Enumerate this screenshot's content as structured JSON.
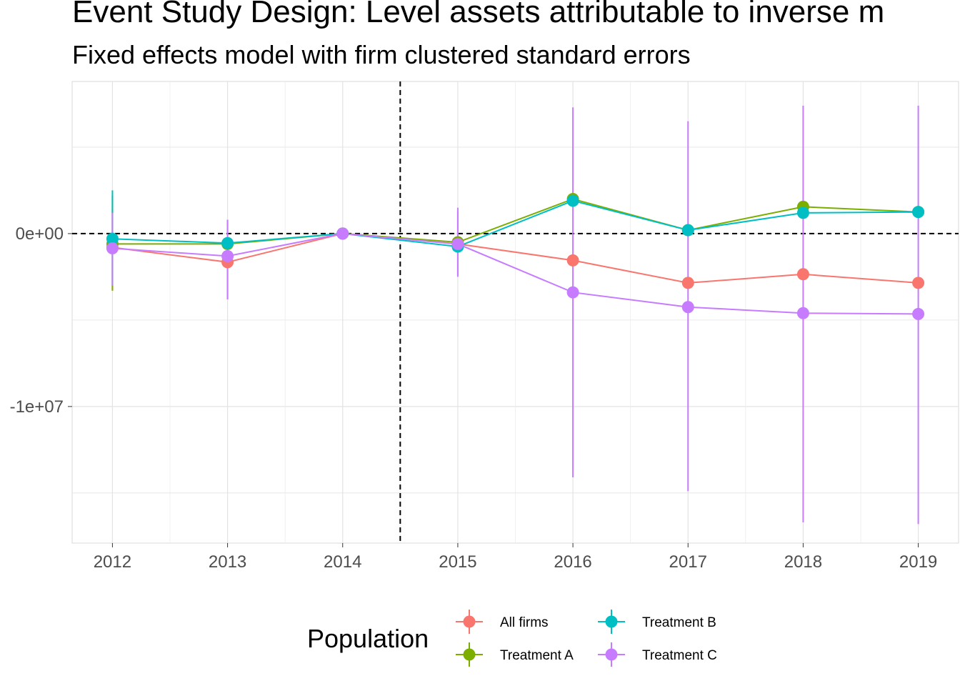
{
  "chart_data": {
    "type": "line",
    "title": "Event Study Design: Level assets attributable to inverse m",
    "subtitle": "Fixed effects model with firm clustered standard errors",
    "xlabel": "",
    "ylabel": "",
    "x": [
      2012,
      2013,
      2014,
      2015,
      2016,
      2017,
      2018,
      2019
    ],
    "x_tick_labels": [
      "2012",
      "2013",
      "2014",
      "2015",
      "2016",
      "2017",
      "2018",
      "2019"
    ],
    "y_tick_labels": [
      "0e+00",
      "-1e+07"
    ],
    "y_ticks": [
      0,
      -10000000
    ],
    "xlim": [
      2011.65,
      2019.35
    ],
    "ylim": [
      -17900000,
      8800000
    ],
    "grid": true,
    "vlines": [
      2014.5
    ],
    "hlines": [
      0
    ],
    "legend": {
      "title": "Population",
      "position": "bottom",
      "ncol": 2
    },
    "series": [
      {
        "name": "All firms",
        "color": "#F8766D",
        "values": [
          -800000,
          -1650000,
          0,
          -600000,
          -1550000,
          -2850000,
          -2350000,
          -2850000
        ],
        "lower": [
          -3300000,
          -3800000,
          0,
          -2400000,
          -1550000,
          -2850000,
          -2350000,
          -2850000
        ],
        "upper": [
          1500000,
          800000,
          0,
          1300000,
          -1550000,
          -2850000,
          -2350000,
          -2850000
        ]
      },
      {
        "name": "Treatment A",
        "color": "#7CAE00",
        "values": [
          -600000,
          -600000,
          0,
          -500000,
          2000000,
          200000,
          1550000,
          1250000
        ],
        "lower": [
          -3300000,
          -600000,
          0,
          -500000,
          2000000,
          200000,
          1550000,
          1250000
        ],
        "upper": [
          2200000,
          -600000,
          0,
          -500000,
          2000000,
          200000,
          1550000,
          1250000
        ]
      },
      {
        "name": "Treatment B",
        "color": "#00BFC4",
        "values": [
          -300000,
          -550000,
          0,
          -750000,
          1900000,
          200000,
          1200000,
          1250000
        ],
        "lower": [
          -3000000,
          -550000,
          0,
          -750000,
          1900000,
          200000,
          1200000,
          1250000
        ],
        "upper": [
          2500000,
          -550000,
          0,
          -750000,
          1900000,
          200000,
          1200000,
          1250000
        ]
      },
      {
        "name": "Treatment C",
        "color": "#C77CFF",
        "values": [
          -850000,
          -1300000,
          0,
          -600000,
          -3400000,
          -4250000,
          -4600000,
          -4650000
        ],
        "lower": [
          -3000000,
          -3800000,
          0,
          -2500000,
          -14100000,
          -14900000,
          -16700000,
          -16800000
        ],
        "upper": [
          1200000,
          800000,
          0,
          1500000,
          7300000,
          6500000,
          7400000,
          7400000
        ]
      }
    ]
  }
}
